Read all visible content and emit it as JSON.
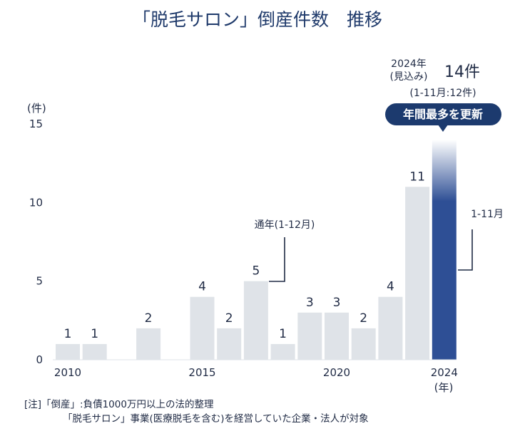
{
  "chart_data": {
    "type": "bar",
    "title": "「脱毛サロン」倒産件数　推移",
    "ylabel": "(件)",
    "xlabel": "(年)",
    "ylim": [
      0,
      15
    ],
    "yticks": [
      0,
      5,
      10,
      15
    ],
    "xticks": [
      2010,
      2015,
      2020,
      2024
    ],
    "categories": [
      2010,
      2011,
      2012,
      2013,
      2014,
      2015,
      2016,
      2017,
      2018,
      2019,
      2020,
      2021,
      2022,
      2023,
      2024
    ],
    "values": [
      1,
      1,
      0,
      2,
      0,
      4,
      2,
      5,
      1,
      3,
      3,
      2,
      4,
      11,
      14
    ],
    "data_labels": [
      "1",
      "1",
      "",
      "2",
      "",
      "4",
      "2",
      "5",
      "1",
      "3",
      "3",
      "2",
      "4",
      "11",
      ""
    ],
    "colors": {
      "normal": "#dfe3e8",
      "highlight": "#2e4f95",
      "badge": "#1c3a6e"
    },
    "annotations": {
      "full_year": "通年(1-12月)",
      "partial": "1-11月",
      "forecast_year": "2024年",
      "forecast_note": "(見込み)",
      "forecast_value": "14件",
      "actual_to_date": "(1-11月:12件)",
      "badge": "年間最多を更新"
    }
  },
  "notes": {
    "line1": "[注]「倒産」:負債1000万円以上の法的整理",
    "line2": "「脱毛サロン」事業(医療脱毛を含む)を経営していた企業・法人が対象"
  }
}
